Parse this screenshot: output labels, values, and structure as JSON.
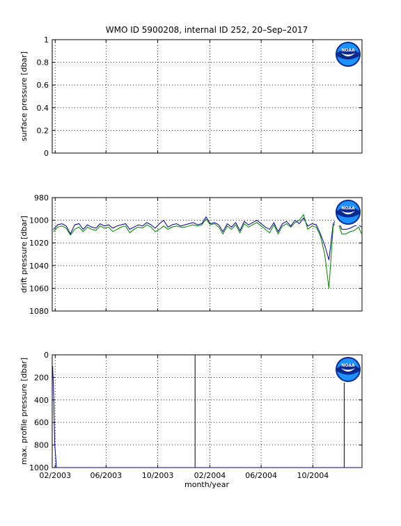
{
  "title": "WMO ID 5900208, internal ID 252, 20–Sep–2017",
  "xlabel": "month/year",
  "x_ticks": [
    "02/2003",
    "06/2003",
    "10/2003",
    "02/2004",
    "06/2004",
    "10/2004"
  ],
  "logo_text": "NOAA",
  "colors": {
    "blue": "#00008b",
    "green": "#007f00",
    "black": "#000000"
  },
  "chart_data": [
    {
      "type": "line",
      "ylabel": "surface pressure [dbar]",
      "ylim": [
        0,
        1
      ],
      "yticks": [
        "0",
        "0.2",
        "0.4",
        "0.6",
        "0.8",
        "1"
      ],
      "x_range": [
        "2003-01-25",
        "2005-01-25"
      ],
      "grid": true,
      "series": []
    },
    {
      "type": "line",
      "ylabel": "drift pressure [dbar]",
      "ylim": [
        1080,
        980
      ],
      "yticks": [
        "980",
        "1000",
        "1020",
        "1040",
        "1060",
        "1080"
      ],
      "y_reversed": true,
      "x_range": [
        "2003-01-25",
        "2005-01-25"
      ],
      "grid": true,
      "series": [
        {
          "color": "blue",
          "x": [
            "2003-01-28",
            "2003-02-07",
            "2003-02-17",
            "2003-02-27",
            "2003-03-09",
            "2003-03-19",
            "2003-03-29",
            "2003-04-08",
            "2003-04-18",
            "2003-04-28",
            "2003-05-08",
            "2003-05-18",
            "2003-05-28",
            "2003-06-07",
            "2003-06-17",
            "2003-06-27",
            "2003-07-07",
            "2003-07-17",
            "2003-07-27",
            "2003-08-06",
            "2003-08-16",
            "2003-08-26",
            "2003-09-05",
            "2003-09-15",
            "2003-09-25",
            "2003-10-05",
            "2003-10-15",
            "2003-10-25",
            "2003-11-04",
            "2003-11-14",
            "2003-11-24",
            "2003-12-04",
            "2003-12-14",
            "2003-12-24",
            "2004-01-03",
            "2004-01-13",
            "2004-01-23",
            "2004-02-02",
            "2004-02-12",
            "2004-02-22",
            "2004-03-03",
            "2004-03-13",
            "2004-03-23",
            "2004-04-02",
            "2004-04-12",
            "2004-04-22",
            "2004-05-02",
            "2004-05-12",
            "2004-05-22",
            "2004-06-01",
            "2004-06-11",
            "2004-06-21",
            "2004-07-01",
            "2004-07-11",
            "2004-07-21",
            "2004-07-31",
            "2004-08-10",
            "2004-08-20",
            "2004-08-30",
            "2004-09-09",
            "2004-09-19",
            "2004-09-29",
            "2004-10-09",
            "2004-10-19",
            "2004-10-29",
            "2004-11-08",
            "2004-11-18",
            "2004-11-28",
            "2004-12-08",
            "2004-12-18",
            "2004-12-28",
            "2005-01-07",
            "2005-01-17",
            "2005-01-24"
          ],
          "values": [
            1008,
            1004,
            1003,
            1005,
            1012,
            1004,
            1003,
            1008,
            1004,
            1006,
            1007,
            1003,
            1005,
            1004,
            1007,
            1005,
            1004,
            1003,
            1008,
            1006,
            1004,
            1005,
            1002,
            1004,
            1007,
            1003,
            1000,
            1006,
            1004,
            1003,
            1005,
            1004,
            1003,
            1002,
            1004,
            1003,
            997,
            1003,
            1002,
            1004,
            1010,
            1003,
            1006,
            1002,
            1009,
            1001,
            1004,
            1002,
            1000,
            1003,
            1006,
            1008,
            1002,
            1010,
            1003,
            1001,
            1005,
            1000,
            1003,
            998,
            1005,
            1003,
            1004,
            1012,
            1022,
            1035,
            1003,
            998,
            1008,
            1008,
            1007,
            1005,
            1004,
            1006
          ]
        },
        {
          "color": "green",
          "x": [
            "2003-01-28",
            "2003-02-07",
            "2003-02-17",
            "2003-02-27",
            "2003-03-09",
            "2003-03-19",
            "2003-03-29",
            "2003-04-08",
            "2003-04-18",
            "2003-04-28",
            "2003-05-08",
            "2003-05-18",
            "2003-05-28",
            "2003-06-07",
            "2003-06-17",
            "2003-06-27",
            "2003-07-07",
            "2003-07-17",
            "2003-07-27",
            "2003-08-06",
            "2003-08-16",
            "2003-08-26",
            "2003-09-05",
            "2003-09-15",
            "2003-09-25",
            "2003-10-05",
            "2003-10-15",
            "2003-10-25",
            "2003-11-04",
            "2003-11-14",
            "2003-11-24",
            "2003-12-04",
            "2003-12-14",
            "2003-12-24",
            "2004-01-03",
            "2004-01-13",
            "2004-01-23",
            "2004-02-02",
            "2004-02-12",
            "2004-02-22",
            "2004-03-03",
            "2004-03-13",
            "2004-03-23",
            "2004-04-02",
            "2004-04-12",
            "2004-04-22",
            "2004-05-02",
            "2004-05-12",
            "2004-05-22",
            "2004-06-01",
            "2004-06-11",
            "2004-06-21",
            "2004-07-01",
            "2004-07-11",
            "2004-07-21",
            "2004-07-31",
            "2004-08-10",
            "2004-08-20",
            "2004-08-30",
            "2004-09-09",
            "2004-09-19",
            "2004-09-29",
            "2004-10-09",
            "2004-10-19",
            "2004-10-29",
            "2004-11-08",
            "2004-11-18",
            "2004-11-28",
            "2004-12-08",
            "2004-12-18",
            "2004-12-28",
            "2005-01-07",
            "2005-01-17",
            "2005-01-24"
          ],
          "values": [
            1010,
            1006,
            1005,
            1007,
            1013,
            1008,
            1006,
            1010,
            1006,
            1008,
            1009,
            1005,
            1007,
            1006,
            1010,
            1008,
            1006,
            1005,
            1011,
            1008,
            1006,
            1007,
            1004,
            1006,
            1010,
            1008,
            1005,
            1008,
            1006,
            1005,
            1006,
            1006,
            1005,
            1004,
            1005,
            1004,
            999,
            1004,
            1003,
            1006,
            1012,
            1005,
            1008,
            1004,
            1011,
            1003,
            1006,
            1004,
            1002,
            1005,
            1008,
            1011,
            1004,
            1012,
            1005,
            1003,
            1006,
            1002,
            1000,
            995,
            1008,
            1005,
            1006,
            1014,
            1030,
            1060,
            1005,
            1000,
            1012,
            1012,
            1010,
            1009,
            1006,
            1012
          ]
        }
      ]
    },
    {
      "type": "line",
      "ylabel": "max. profile pressure [dbar]",
      "ylim": [
        1000,
        0
      ],
      "yticks": [
        "0",
        "200",
        "400",
        "600",
        "800",
        "1000"
      ],
      "y_reversed": true,
      "x_range": [
        "2003-01-25",
        "2005-01-25"
      ],
      "grid": true,
      "series": [
        {
          "color": "blue",
          "x": [
            "2003-01-26",
            "2003-01-28",
            "2003-01-31",
            "2003-02-04",
            "2005-01-24"
          ],
          "values": [
            100,
            300,
            800,
            1000,
            1000
          ]
        },
        {
          "color": "black",
          "x": [
            "2003-12-28",
            "2003-12-28"
          ],
          "values": [
            0,
            1000
          ]
        },
        {
          "color": "black",
          "x": [
            "2004-12-14",
            "2004-12-14"
          ],
          "values": [
            230,
            1000
          ]
        }
      ]
    }
  ]
}
